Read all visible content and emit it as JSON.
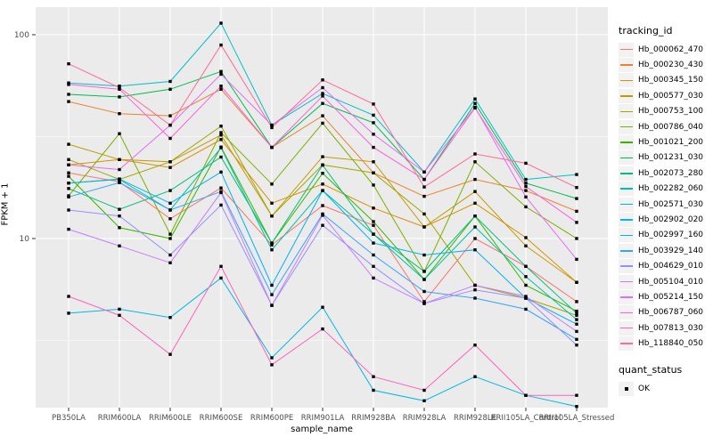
{
  "chart_data": {
    "type": "line",
    "xlabel": "sample_name",
    "ylabel": "FPKM + 1",
    "y_scale": "log10",
    "y_ticks": [
      10,
      100
    ],
    "y_minor_ticks": [
      3.162,
      31.62
    ],
    "ylim_px_note": "log axis, values approx 1.5 to 116",
    "grid": "on",
    "panel_bg": "#EBEBEB",
    "grid_color": "#FFFFFF",
    "point_color": "#000000",
    "legend": {
      "position": "right",
      "color_title": "tracking_id",
      "shape_title": "quant_status",
      "shape_items": [
        {
          "label": "OK"
        }
      ]
    },
    "categories": [
      "PB350LA",
      "RRIM600LA",
      "RRIM600LE",
      "RRIM600SE",
      "RRIM600PE",
      "RRIM901LA",
      "RRIM928BA",
      "RRIM928LA",
      "RRIM928LE",
      "RRII105LA_Control",
      "RRII105LA_Stressed"
    ],
    "series": [
      {
        "name": "Hb_000062_470",
        "color": "#F8766D",
        "values": [
          21.0,
          19.0,
          12.5,
          17.7,
          9.3,
          14.5,
          11.6,
          4.9,
          10.0,
          7.3,
          4.9
        ]
      },
      {
        "name": "Hb_000230_430",
        "color": "#EA8331",
        "values": [
          47.0,
          41.0,
          40.0,
          54.0,
          28.0,
          40.0,
          21.0,
          16.1,
          19.5,
          17.2,
          13.6
        ]
      },
      {
        "name": "Hb_000345_150",
        "color": "#D89000",
        "values": [
          23.0,
          24.4,
          22.3,
          30.6,
          14.9,
          18.5,
          14.1,
          11.4,
          14.9,
          10.1,
          6.1
        ]
      },
      {
        "name": "Hb_000577_030",
        "color": "#C09B00",
        "values": [
          29.0,
          24.4,
          23.8,
          32.2,
          12.9,
          25.2,
          23.8,
          11.4,
          17.0,
          9.2,
          6.1
        ]
      },
      {
        "name": "Hb_000753_100",
        "color": "#A3A500",
        "values": [
          24.4,
          19.5,
          23.8,
          35.6,
          12.9,
          23.0,
          21.0,
          13.2,
          5.9,
          5.1,
          4.2
        ]
      },
      {
        "name": "Hb_000786_040",
        "color": "#7CAE00",
        "values": [
          16.2,
          32.7,
          10.5,
          33.1,
          18.5,
          36.8,
          18.3,
          6.9,
          23.8,
          14.3,
          10.0
        ]
      },
      {
        "name": "Hb_001021_200",
        "color": "#39B600",
        "values": [
          20.2,
          11.3,
          10.0,
          28.1,
          9.5,
          20.9,
          12.1,
          6.3,
          12.9,
          5.9,
          4.4
        ]
      },
      {
        "name": "Hb_001231_030",
        "color": "#00BB4E",
        "values": [
          51.0,
          49.5,
          54.0,
          66.0,
          28.0,
          46.0,
          37.0,
          19.5,
          46.0,
          18.7,
          15.7
        ]
      },
      {
        "name": "Hb_002073_280",
        "color": "#00BF7D",
        "values": [
          17.6,
          13.9,
          17.2,
          25.1,
          9.5,
          22.9,
          10.5,
          6.9,
          12.9,
          7.3,
          4.3
        ]
      },
      {
        "name": "Hb_002282_060",
        "color": "#00C1A3",
        "values": [
          18.7,
          19.5,
          13.8,
          27.9,
          8.8,
          17.2,
          10.5,
          6.3,
          11.4,
          6.5,
          4.0
        ]
      },
      {
        "name": "Hb_002571_030",
        "color": "#00BFC4",
        "values": [
          58.0,
          56.0,
          59.0,
          114.0,
          36.0,
          51.5,
          40.3,
          21.2,
          48.4,
          19.5,
          20.6
        ]
      },
      {
        "name": "Hb_002902_020",
        "color": "#00BAE0",
        "values": [
          4.3,
          4.5,
          4.1,
          6.4,
          2.6,
          4.6,
          1.8,
          1.6,
          2.1,
          1.7,
          1.5
        ]
      },
      {
        "name": "Hb_002997_160",
        "color": "#00B0F6",
        "values": [
          18.7,
          19.6,
          14.9,
          21.2,
          5.9,
          17.2,
          9.5,
          8.3,
          8.8,
          5.1,
          3.8
        ]
      },
      {
        "name": "Hb_003929_140",
        "color": "#35A2FF",
        "values": [
          16.0,
          18.8,
          13.8,
          17.0,
          5.3,
          13.2,
          8.3,
          5.5,
          5.1,
          4.5,
          3.2
        ]
      },
      {
        "name": "Hb_004629_010",
        "color": "#9590FF",
        "values": [
          13.8,
          12.9,
          8.3,
          14.6,
          4.7,
          11.6,
          7.3,
          4.8,
          5.6,
          5.1,
          3.0
        ]
      },
      {
        "name": "Hb_005104_010",
        "color": "#C77CFF",
        "values": [
          11.1,
          9.2,
          7.6,
          16.8,
          4.7,
          13.0,
          6.4,
          4.8,
          5.9,
          5.2,
          3.5
        ]
      },
      {
        "name": "Hb_005214_150",
        "color": "#E76BF3",
        "values": [
          23.0,
          21.8,
          36.0,
          64.0,
          36.0,
          55.0,
          32.5,
          21.2,
          44.0,
          16.0,
          7.9
        ]
      },
      {
        "name": "Hb_006787_060",
        "color": "#FA62DB",
        "values": [
          57.0,
          54.0,
          31.0,
          56.0,
          28.0,
          50.0,
          28.0,
          19.5,
          43.7,
          18.0,
          12.0
        ]
      },
      {
        "name": "Hb_007813_030",
        "color": "#FF62BC",
        "values": [
          5.2,
          4.2,
          2.7,
          7.3,
          2.4,
          3.6,
          2.1,
          1.8,
          3.0,
          1.7,
          1.7
        ]
      },
      {
        "name": "Hb_118840_050",
        "color": "#FF6A98",
        "values": [
          72.0,
          55.0,
          36.0,
          89.0,
          35.0,
          60.0,
          45.7,
          17.9,
          26.0,
          23.4,
          17.8
        ]
      }
    ],
    "axis_text_color": "#4D4D4D",
    "tick_mark_color": "#333333"
  }
}
